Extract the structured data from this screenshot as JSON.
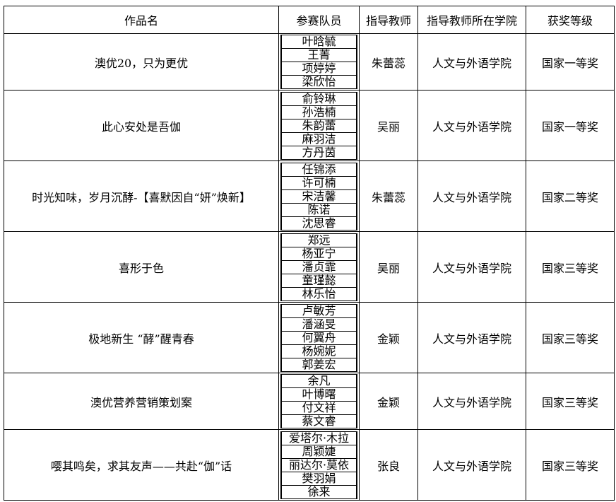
{
  "headers": [
    "作品名",
    "参赛队员",
    "指导教师",
    "指导教师所在学院",
    "获奖等级"
  ],
  "rows": [
    {
      "work": "澳优20，只为更优",
      "members": [
        "叶晗毓",
        "王菁",
        "项婷婷",
        "梁欣怡"
      ],
      "teacher": "朱蕾蕊",
      "college": "人文与外语学院",
      "award": "国家一等奖"
    },
    {
      "work": "此心安处是吾伽",
      "members": [
        "俞铃琳",
        "孙浩楠",
        "朱韵蕾",
        "麻羽洁",
        "方丹茵"
      ],
      "teacher": "吴丽",
      "college": "人文与外语学院",
      "award": "国家一等奖"
    },
    {
      "work": "时光知味，岁月沉酵-【喜默因自“妍”焕新】",
      "members": [
        "任锦添",
        "许可楠",
        "宋洁馨",
        "陈诺",
        "沈思睿"
      ],
      "teacher": "朱蕾蕊",
      "college": "人文与外语学院",
      "award": "国家二等奖"
    },
    {
      "work": "喜形于色",
      "members": [
        "郑远",
        "杨亚宁",
        "潘贞霏",
        "童瑾懿",
        "林乐怡"
      ],
      "teacher": "吴丽",
      "college": "人文与外语学院",
      "award": "国家三等奖"
    },
    {
      "work": "极地新生 “酵”醒青春",
      "members": [
        "卢敏芳",
        "潘涵旻",
        "何翼舟",
        "杨婉妮",
        "郭姜宏"
      ],
      "teacher": "金颖",
      "college": "人文与外语学院",
      "award": "国家三等奖"
    },
    {
      "work": "澳优营养营销策划案",
      "members": [
        "余凡",
        "叶博曙",
        "付文祥",
        "蔡文睿"
      ],
      "teacher": "金颖",
      "college": "人文与外语学院",
      "award": "国家三等奖"
    },
    {
      "work": "嘤其鸣矣，求其友声——共赴“伽”话",
      "members": [
        "爱塔尔·木拉",
        "周颖婕",
        "丽达尔·莫依",
        "樊羽娟",
        "徐来"
      ],
      "teacher": "张良",
      "college": "人文与外语学院",
      "award": "国家三等奖"
    }
  ]
}
